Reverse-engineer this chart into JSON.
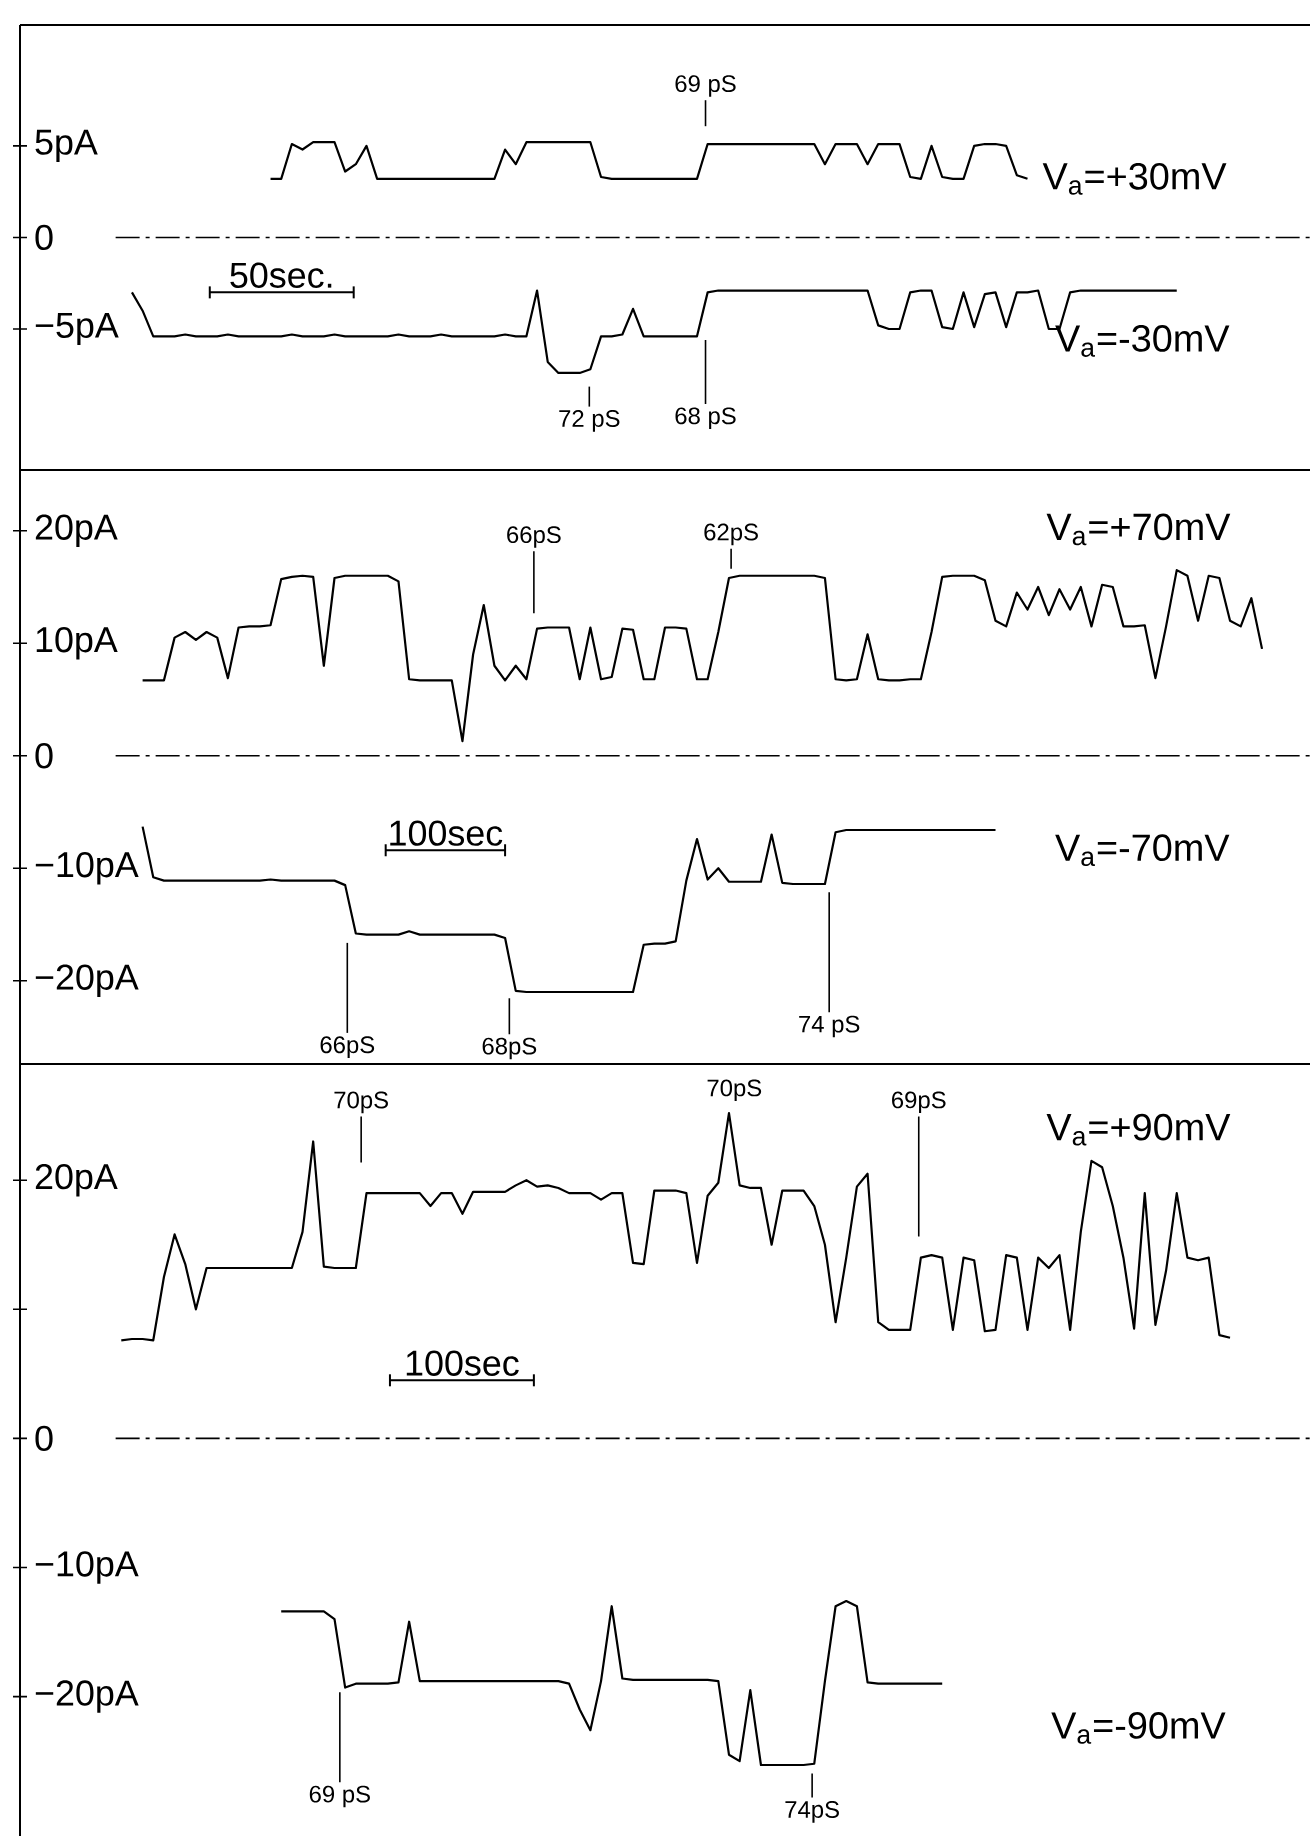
{
  "chart_data": [
    {
      "type": "line",
      "tick_labels": "y",
      "ylim": [
        -12.7,
        11.6
      ],
      "yticks": [
        {
          "value": 5,
          "label": "5pA"
        },
        0,
        {
          "value": -5,
          "label": "−5pA"
        }
      ],
      "categories": [
        null,
        null,
        null,
        null,
        null,
        null,
        null,
        null,
        null,
        null,
        null,
        null,
        null,
        null,
        null,
        null,
        null,
        null,
        null,
        null,
        null,
        null,
        null,
        null,
        null,
        null,
        null,
        null,
        null,
        null,
        null,
        null,
        null,
        null,
        null,
        null,
        null,
        null,
        null,
        null,
        null,
        null,
        null,
        null,
        null,
        null,
        null,
        null,
        null,
        null,
        null,
        null,
        null,
        null,
        null,
        null,
        null,
        null,
        null,
        null,
        null,
        null,
        null,
        null,
        null,
        null,
        null,
        null,
        null,
        null,
        null,
        null,
        null,
        null,
        null,
        null,
        null,
        null,
        null,
        null,
        null,
        null,
        null,
        null,
        null,
        null,
        null,
        null,
        null,
        null,
        null,
        null,
        null,
        null,
        null,
        null,
        null,
        null,
        null,
        null,
        null,
        null,
        null,
        null,
        null,
        null,
        null,
        null,
        null,
        null,
        null,
        null,
        null,
        null,
        null,
        null,
        null,
        null,
        null,
        null,
        null
      ],
      "ref_lines": [
        {
          "axis": "y",
          "value": 0,
          "line_style": "dashdot",
          "color": "#000000"
        }
      ],
      "annotations": [
        "69 pS",
        "50sec.",
        "72 pS",
        "68 pS"
      ],
      "series": [
        {
          "name": "V$_{a}$=+30mV",
          "color": "#000000",
          "values": [
            null,
            null,
            null,
            null,
            null,
            null,
            null,
            null,
            null,
            null,
            null,
            null,
            null,
            null,
            null,
            null,
            null,
            null,
            null,
            null,
            null,
            null,
            null,
            3.2,
            3.2,
            5.1,
            4.8,
            5.2,
            5.2,
            5.2,
            3.6,
            4.0,
            5.0,
            3.2,
            3.2,
            3.2,
            3.2,
            3.2,
            3.2,
            3.2,
            3.2,
            3.2,
            3.2,
            3.2,
            3.2,
            4.8,
            4.0,
            5.2,
            5.2,
            5.2,
            5.2,
            5.2,
            5.2,
            5.2,
            3.3,
            3.2,
            3.2,
            3.2,
            3.2,
            3.2,
            3.2,
            3.2,
            3.2,
            3.2,
            5.1,
            5.1,
            5.1,
            5.1,
            5.1,
            5.1,
            5.1,
            5.1,
            5.1,
            5.1,
            5.1,
            4.0,
            5.1,
            5.1,
            5.1,
            4.0,
            5.1,
            5.1,
            5.1,
            3.3,
            3.2,
            5.0,
            3.3,
            3.2,
            3.2,
            5.0,
            5.1,
            5.1,
            5.0,
            3.4,
            3.2,
            null,
            null,
            null,
            null,
            null,
            null,
            null,
            null,
            null,
            null,
            null,
            null,
            null,
            null,
            null,
            null,
            null,
            null,
            null,
            null,
            null,
            null,
            null,
            null,
            null,
            null
          ]
        },
        {
          "name": "V$_{a}$=-30mV",
          "color": "#000000",
          "values": [
            null,
            null,
            null,
            null,
            null,
            null,
            null,
            null,
            null,
            null,
            -3.0,
            -4.0,
            -5.4,
            -5.4,
            -5.4,
            -5.3,
            -5.4,
            -5.4,
            -5.4,
            -5.3,
            -5.4,
            -5.4,
            -5.4,
            -5.4,
            -5.4,
            -5.3,
            -5.4,
            -5.4,
            -5.4,
            -5.3,
            -5.4,
            -5.4,
            -5.4,
            -5.4,
            -5.4,
            -5.3,
            -5.4,
            -5.4,
            -5.4,
            -5.3,
            -5.4,
            -5.4,
            -5.4,
            -5.4,
            -5.4,
            -5.3,
            -5.4,
            -5.4,
            -2.9,
            -6.8,
            -7.4,
            -7.4,
            -7.4,
            -7.2,
            -5.4,
            -5.4,
            -5.3,
            -3.9,
            -5.4,
            -5.4,
            -5.4,
            -5.4,
            -5.4,
            -5.4,
            -3.0,
            -2.9,
            -2.9,
            -2.9,
            -2.9,
            -2.9,
            -2.9,
            -2.9,
            -2.9,
            -2.9,
            -2.9,
            -2.9,
            -2.9,
            -2.9,
            -2.9,
            -2.9,
            -4.8,
            -5.0,
            -5.0,
            -3.0,
            -2.9,
            -2.9,
            -4.9,
            -5.0,
            -3.0,
            -4.9,
            -3.1,
            -3.0,
            -4.9,
            -3.0,
            -3.0,
            -2.9,
            -5.0,
            -5.0,
            -3.0,
            -2.9,
            -2.9,
            -2.9,
            -2.9,
            -2.9,
            -2.9,
            -2.9,
            -2.9,
            -2.9,
            -2.9,
            null,
            null,
            null,
            null,
            null,
            null,
            null,
            null,
            null,
            null,
            null,
            null
          ]
        }
      ]
    },
    {
      "type": "line",
      "tick_labels": "y",
      "ylim": [
        -27.4,
        25.4
      ],
      "yticks": [
        {
          "value": 20,
          "label": "20pA"
        },
        {
          "value": 10,
          "label": "10pA"
        },
        0,
        {
          "value": -10,
          "label": "−10pA"
        },
        {
          "value": -20,
          "label": "−20pA"
        }
      ],
      "categories": [
        null,
        null,
        null,
        null,
        null,
        null,
        null,
        null,
        null,
        null,
        null,
        null,
        null,
        null,
        null,
        null,
        null,
        null,
        null,
        null,
        null,
        null,
        null,
        null,
        null,
        null,
        null,
        null,
        null,
        null,
        null,
        null,
        null,
        null,
        null,
        null,
        null,
        null,
        null,
        null,
        null,
        null,
        null,
        null,
        null,
        null,
        null,
        null,
        null,
        null,
        null,
        null,
        null,
        null,
        null,
        null,
        null,
        null,
        null,
        null,
        null,
        null,
        null,
        null,
        null,
        null,
        null,
        null,
        null,
        null,
        null,
        null,
        null,
        null,
        null,
        null,
        null,
        null,
        null,
        null,
        null,
        null,
        null,
        null,
        null,
        null,
        null,
        null,
        null,
        null,
        null,
        null,
        null,
        null,
        null,
        null,
        null,
        null,
        null,
        null,
        null,
        null,
        null,
        null,
        null,
        null,
        null,
        null,
        null,
        null,
        null,
        null,
        null,
        null,
        null,
        null,
        null,
        null,
        null,
        null,
        null
      ],
      "ref_lines": [
        {
          "axis": "y",
          "value": 0,
          "line_style": "dashdot",
          "color": "#000000"
        }
      ],
      "annotations": [
        "66pS",
        "62pS",
        "100sec",
        "66pS",
        "68pS",
        "74 pS"
      ],
      "series": [
        {
          "name": "V$_{a}$=+70mV",
          "color": "#000000",
          "values": [
            null,
            null,
            null,
            null,
            null,
            null,
            null,
            null,
            null,
            null,
            null,
            6.7,
            6.7,
            6.7,
            10.5,
            11.0,
            10.3,
            11.0,
            10.5,
            6.9,
            11.4,
            11.5,
            11.5,
            11.6,
            15.7,
            15.9,
            16.0,
            15.9,
            8.0,
            15.8,
            16.0,
            16.0,
            16.0,
            16.0,
            16.0,
            15.5,
            6.8,
            6.7,
            6.7,
            6.7,
            6.7,
            1.3,
            9.0,
            13.4,
            8.0,
            6.7,
            8.0,
            6.8,
            11.3,
            11.4,
            11.4,
            11.4,
            6.8,
            11.4,
            6.8,
            7.0,
            11.3,
            11.2,
            6.8,
            6.8,
            11.4,
            11.4,
            11.3,
            6.8,
            6.8,
            11.0,
            15.8,
            16.0,
            16.0,
            16.0,
            16.0,
            16.0,
            16.0,
            16.0,
            16.0,
            15.8,
            6.8,
            6.7,
            6.8,
            10.8,
            6.8,
            6.7,
            6.7,
            6.8,
            6.8,
            11.0,
            15.9,
            16.0,
            16.0,
            16.0,
            15.6,
            12.0,
            11.5,
            14.5,
            13.0,
            15.0,
            12.5,
            14.8,
            13.0,
            15.0,
            11.5,
            15.2,
            15.0,
            11.5,
            11.5,
            11.6,
            6.9,
            11.5,
            16.5,
            16.0,
            12.0,
            16.0,
            15.8,
            12.0,
            11.5,
            14.0,
            9.5,
            null,
            null,
            null,
            null
          ]
        },
        {
          "name": "V$_{a}$=-70mV",
          "color": "#000000",
          "values": [
            null,
            null,
            null,
            null,
            null,
            null,
            null,
            null,
            null,
            null,
            null,
            -6.3,
            -10.8,
            -11.1,
            -11.1,
            -11.1,
            -11.1,
            -11.1,
            -11.1,
            -11.1,
            -11.1,
            -11.1,
            -11.1,
            -11.0,
            -11.1,
            -11.1,
            -11.1,
            -11.1,
            -11.1,
            -11.1,
            -11.5,
            -15.8,
            -15.9,
            -15.9,
            -15.9,
            -15.9,
            -15.6,
            -15.9,
            -15.9,
            -15.9,
            -15.9,
            -15.9,
            -15.9,
            -15.9,
            -15.9,
            -16.2,
            -20.9,
            -21.0,
            -21.0,
            -21.0,
            -21.0,
            -21.0,
            -21.0,
            -21.0,
            -21.0,
            -21.0,
            -21.0,
            -21.0,
            -16.8,
            -16.7,
            -16.7,
            -16.5,
            -11.1,
            -7.4,
            -11.0,
            -10.0,
            -11.2,
            -11.2,
            -11.2,
            -11.2,
            -7.0,
            -11.3,
            -11.4,
            -11.4,
            -11.4,
            -11.4,
            -6.8,
            -6.6,
            -6.6,
            -6.6,
            -6.6,
            -6.6,
            -6.6,
            -6.6,
            -6.6,
            -6.6,
            -6.6,
            -6.6,
            -6.6,
            -6.6,
            -6.6,
            -6.6,
            null,
            null,
            null,
            null,
            null,
            null,
            null,
            null,
            null,
            null,
            null,
            null,
            null,
            null,
            null,
            null,
            null,
            null,
            null,
            null,
            null,
            null,
            null,
            null,
            null,
            null,
            null,
            null,
            null
          ]
        }
      ]
    },
    {
      "type": "line",
      "tick_labels": "y",
      "ylim": [
        -30.8,
        29.0
      ],
      "yticks": [
        {
          "value": 20,
          "label": "20pA"
        },
        {
          "value": 10,
          "label": null
        },
        0,
        {
          "value": -10,
          "label": "−10pA"
        },
        {
          "value": -20,
          "label": "−20pA"
        }
      ],
      "categories": [
        null,
        null,
        null,
        null,
        null,
        null,
        null,
        null,
        null,
        null,
        null,
        null,
        null,
        null,
        null,
        null,
        null,
        null,
        null,
        null,
        null,
        null,
        null,
        null,
        null,
        null,
        null,
        null,
        null,
        null,
        null,
        null,
        null,
        null,
        null,
        null,
        null,
        null,
        null,
        null,
        null,
        null,
        null,
        null,
        null,
        null,
        null,
        null,
        null,
        null,
        null,
        null,
        null,
        null,
        null,
        null,
        null,
        null,
        null,
        null,
        null,
        null,
        null,
        null,
        null,
        null,
        null,
        null,
        null,
        null,
        null,
        null,
        null,
        null,
        null,
        null,
        null,
        null,
        null,
        null,
        null,
        null,
        null,
        null,
        null,
        null,
        null,
        null,
        null,
        null,
        null,
        null,
        null,
        null,
        null,
        null,
        null,
        null,
        null,
        null,
        null,
        null,
        null,
        null,
        null,
        null,
        null,
        null,
        null,
        null,
        null,
        null,
        null,
        null,
        null,
        null,
        null,
        null,
        null,
        null,
        null
      ],
      "ref_lines": [
        {
          "axis": "y",
          "value": 0,
          "line_style": "dashdot",
          "color": "#000000"
        }
      ],
      "annotations": [
        "70pS",
        "70pS",
        "69pS",
        "100sec",
        "69 pS",
        "74pS"
      ],
      "series": [
        {
          "name": "V$_{a}$=+90mV",
          "color": "#000000",
          "values": [
            null,
            null,
            null,
            null,
            null,
            null,
            null,
            null,
            null,
            7.6,
            7.7,
            7.7,
            7.6,
            12.5,
            15.8,
            13.5,
            10.0,
            13.2,
            13.2,
            13.2,
            13.2,
            13.2,
            13.2,
            13.2,
            13.2,
            13.2,
            16.0,
            23.0,
            13.3,
            13.2,
            13.2,
            13.2,
            19.0,
            19.0,
            19.0,
            19.0,
            19.0,
            19.0,
            18.0,
            19.0,
            19.0,
            17.4,
            19.1,
            19.1,
            19.1,
            19.1,
            19.6,
            20.0,
            19.5,
            19.6,
            19.4,
            19.0,
            19.0,
            19.0,
            18.5,
            19.0,
            19.0,
            13.6,
            13.5,
            19.2,
            19.2,
            19.2,
            19.0,
            13.6,
            18.8,
            19.8,
            25.2,
            19.6,
            19.4,
            19.4,
            15.0,
            19.2,
            19.2,
            19.2,
            18.0,
            15.0,
            9.0,
            14.0,
            19.5,
            20.5,
            9.0,
            8.4,
            8.4,
            8.4,
            14.0,
            14.2,
            14.0,
            8.4,
            14.0,
            13.8,
            8.3,
            8.4,
            14.2,
            14.0,
            8.4,
            14.0,
            13.2,
            14.2,
            8.4,
            16.0,
            21.5,
            21.0,
            18.0,
            14.0,
            8.5,
            19.0,
            8.8,
            13.0,
            19.0,
            14.0,
            13.8,
            14.0,
            8.0,
            7.8,
            null,
            null,
            null,
            null,
            null,
            null,
            null
          ]
        },
        {
          "name": "V$_{a}$=-90mV",
          "color": "#000000",
          "values": [
            null,
            null,
            null,
            null,
            null,
            null,
            null,
            null,
            null,
            null,
            null,
            null,
            null,
            null,
            null,
            null,
            null,
            null,
            null,
            null,
            null,
            null,
            null,
            null,
            -13.4,
            -13.4,
            -13.4,
            -13.4,
            -13.4,
            -14.0,
            -19.3,
            -19.0,
            -19.0,
            -19.0,
            -19.0,
            -18.9,
            -14.2,
            -18.8,
            -18.8,
            -18.8,
            -18.8,
            -18.8,
            -18.8,
            -18.8,
            -18.8,
            -18.8,
            -18.8,
            -18.8,
            -18.8,
            -18.8,
            -18.8,
            -19.0,
            -21.0,
            -22.6,
            -18.8,
            -13.0,
            -18.6,
            -18.7,
            -18.7,
            -18.7,
            -18.7,
            -18.7,
            -18.7,
            -18.7,
            -18.7,
            -18.8,
            -24.5,
            -25.0,
            -19.5,
            -25.3,
            -25.3,
            -25.3,
            -25.3,
            -25.3,
            -25.2,
            -18.8,
            -13.0,
            -12.6,
            -13.0,
            -18.9,
            -19.0,
            -19.0,
            -19.0,
            -19.0,
            -19.0,
            -19.0,
            -19.0,
            null,
            null,
            null,
            null,
            null,
            null,
            null,
            null,
            null,
            null,
            null,
            null,
            null,
            null,
            null,
            null,
            null,
            null,
            null,
            null,
            null,
            null,
            null,
            null,
            null,
            null,
            null,
            null,
            null,
            null,
            null,
            null,
            null,
            null
          ]
        }
      ]
    }
  ]
}
